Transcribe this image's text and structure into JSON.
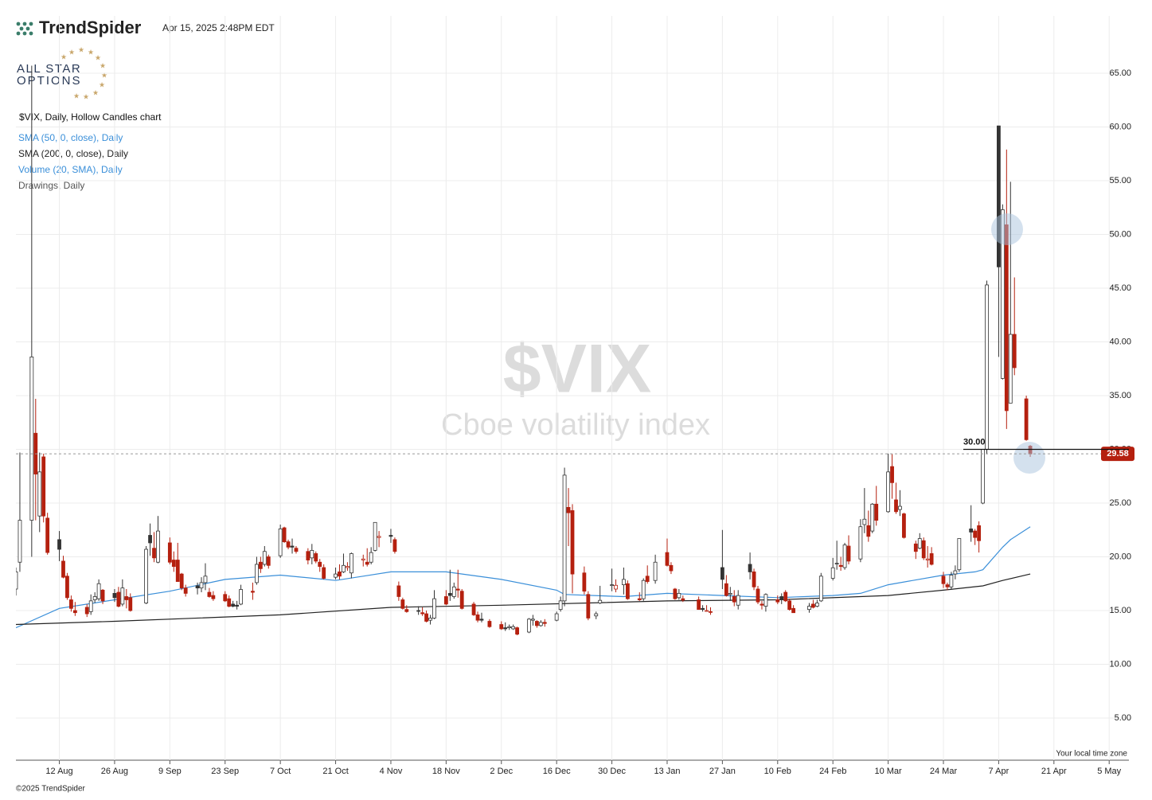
{
  "chart_data": {
    "type": "candlestick",
    "brand": "TrendSpider",
    "timestamp": "Apr 15, 2025 2:48PM EDT",
    "logo_text": [
      "ALL STAR",
      "OPTIONS"
    ],
    "subtitle": "$VIX, Daily, Hollow Candles chart",
    "watermark": "$VIX",
    "watermark_subtitle": "Cboe volatility index",
    "indicators": [
      "Volume (20, SMA), Daily",
      "Drawings, Daily"
    ],
    "timezone_note": "Your local time zone",
    "copyright": "©2025 TrendSpider",
    "up_color": "#333333",
    "down_color": "#b5200f",
    "grid": true,
    "xlim": [
      "1 Aug",
      "10 May"
    ],
    "xticks": [
      "12 Aug",
      "26 Aug",
      "9 Sep",
      "23 Sep",
      "7 Oct",
      "21 Oct",
      "4 Nov",
      "18 Nov",
      "2 Dec",
      "16 Dec",
      "30 Dec",
      "13 Jan",
      "27 Jan",
      "10 Feb",
      "24 Feb",
      "10 Mar",
      "24 Mar",
      "7 Apr",
      "21 Apr",
      "5 May"
    ],
    "ylim": [
      1,
      70
    ],
    "yticks": [
      {
        "value": 5,
        "label": "5.00"
      },
      {
        "value": 10,
        "label": "10.00"
      },
      {
        "value": 15,
        "label": "15.00"
      },
      {
        "value": 20,
        "label": "20.00"
      },
      {
        "value": 25,
        "label": "25.00"
      },
      {
        "value": 30,
        "label": "30.00"
      },
      {
        "value": 35,
        "label": "35.00"
      },
      {
        "value": 40,
        "label": "40.00"
      },
      {
        "value": 45,
        "label": "45.00"
      },
      {
        "value": 50,
        "label": "50.00"
      },
      {
        "value": 55,
        "label": "55.00"
      },
      {
        "value": 60,
        "label": "60.00"
      },
      {
        "value": 65,
        "label": "65.00"
      }
    ],
    "level": {
      "value": 30,
      "label": "30.00"
    },
    "price_label": "29.58",
    "x": [
      "1 Aug",
      "2 Aug",
      "5 Aug",
      "6 Aug",
      "7 Aug",
      "8 Aug",
      "9 Aug",
      "12 Aug",
      "13 Aug",
      "14 Aug",
      "15 Aug",
      "16 Aug",
      "19 Aug",
      "20 Aug",
      "21 Aug",
      "22 Aug",
      "23 Aug",
      "26 Aug",
      "27 Aug",
      "28 Aug",
      "29 Aug",
      "30 Aug",
      "3 Sep",
      "4 Sep",
      "5 Sep",
      "6 Sep",
      "9 Sep",
      "10 Sep",
      "11 Sep",
      "12 Sep",
      "13 Sep",
      "16 Sep",
      "17 Sep",
      "18 Sep",
      "19 Sep",
      "20 Sep",
      "23 Sep",
      "24 Sep",
      "25 Sep",
      "26 Sep",
      "27 Sep",
      "30 Sep",
      "1 Oct",
      "2 Oct",
      "3 Oct",
      "4 Oct",
      "7 Oct",
      "8 Oct",
      "9 Oct",
      "10 Oct",
      "11 Oct",
      "14 Oct",
      "15 Oct",
      "16 Oct",
      "17 Oct",
      "18 Oct",
      "21 Oct",
      "22 Oct",
      "23 Oct",
      "24 Oct",
      "25 Oct",
      "28 Oct",
      "29 Oct",
      "30 Oct",
      "31 Oct",
      "1 Nov",
      "4 Nov",
      "5 Nov",
      "6 Nov",
      "7 Nov",
      "8 Nov",
      "11 Nov",
      "12 Nov",
      "13 Nov",
      "14 Nov",
      "15 Nov",
      "18 Nov",
      "19 Nov",
      "20 Nov",
      "21 Nov",
      "22 Nov",
      "25 Nov",
      "26 Nov",
      "27 Nov",
      "29 Nov",
      "2 Dec",
      "3 Dec",
      "4 Dec",
      "5 Dec",
      "6 Dec",
      "9 Dec",
      "10 Dec",
      "11 Dec",
      "12 Dec",
      "13 Dec",
      "16 Dec",
      "17 Dec",
      "18 Dec",
      "19 Dec",
      "20 Dec",
      "23 Dec",
      "24 Dec",
      "26 Dec",
      "27 Dec",
      "30 Dec",
      "31 Dec",
      "2 Jan",
      "3 Jan",
      "6 Jan",
      "7 Jan",
      "8 Jan",
      "10 Jan",
      "13 Jan",
      "14 Jan",
      "15 Jan",
      "16 Jan",
      "17 Jan",
      "21 Jan",
      "22 Jan",
      "23 Jan",
      "24 Jan",
      "27 Jan",
      "28 Jan",
      "29 Jan",
      "30 Jan",
      "31 Jan",
      "3 Feb",
      "4 Feb",
      "5 Feb",
      "6 Feb",
      "7 Feb",
      "10 Feb",
      "11 Feb",
      "12 Feb",
      "13 Feb",
      "14 Feb",
      "18 Feb",
      "19 Feb",
      "20 Feb",
      "21 Feb",
      "24 Feb",
      "25 Feb",
      "26 Feb",
      "27 Feb",
      "28 Feb",
      "3 Mar",
      "4 Mar",
      "5 Mar",
      "6 Mar",
      "7 Mar",
      "10 Mar",
      "11 Mar",
      "12 Mar",
      "13 Mar",
      "14 Mar",
      "17 Mar",
      "18 Mar",
      "19 Mar",
      "20 Mar",
      "21 Mar",
      "24 Mar",
      "25 Mar",
      "26 Mar",
      "27 Mar",
      "28 Mar",
      "31 Mar",
      "1 Apr",
      "2 Apr",
      "3 Apr",
      "4 Apr",
      "7 Apr",
      "8 Apr",
      "9 Apr",
      "10 Apr",
      "11 Apr",
      "14 Apr",
      "15 Apr"
    ],
    "open": [
      17.0,
      19.5,
      23.4,
      31.5,
      23.8,
      29.3,
      23.6,
      21.6,
      19.6,
      18.2,
      16.0,
      15.0,
      15.3,
      14.9,
      16.0,
      16.1,
      16.9,
      16.6,
      16.7,
      15.6,
      16.3,
      16.2,
      15.7,
      22.0,
      20.8,
      19.5,
      21.3,
      19.7,
      19.7,
      18.4,
      17.1,
      17.3,
      17.1,
      17.6,
      16.7,
      16.4,
      16.5,
      16.1,
      15.6,
      15.5,
      15.6,
      16.8,
      17.6,
      19.5,
      19.3,
      20.0,
      20.1,
      22.7,
      21.4,
      21.0,
      20.8,
      20.5,
      19.9,
      20.3,
      19.5,
      19.0,
      18.1,
      18.6,
      18.6,
      19.0,
      18.5,
      19.7,
      19.5,
      19.5,
      20.6,
      21.8,
      22.0,
      21.6,
      17.3,
      16.0,
      15.1,
      15.0,
      14.8,
      14.7,
      14.1,
      14.3,
      16.3,
      16.6,
      16.3,
      17.0,
      16.8,
      15.6,
      14.6,
      14.2,
      14.0,
      13.7,
      13.4,
      13.4,
      13.3,
      13.4,
      13.0,
      14.1,
      14.0,
      13.6,
      13.9,
      14.1,
      15.1,
      15.9,
      24.6,
      24.3,
      18.5,
      16.5,
      14.5,
      15.7,
      17.4,
      17.0,
      17.4,
      17.5,
      16.1,
      16.1,
      18.2,
      17.8,
      20.4,
      19.2,
      17.0,
      16.2,
      16.1,
      16.0,
      15.2,
      15.0,
      14.9,
      19.0,
      17.5,
      16.5,
      16.3,
      15.5,
      19.3,
      18.6,
      17.0,
      15.6,
      15.4,
      16.0,
      16.3,
      16.7,
      15.9,
      15.2,
      15.1,
      15.6,
      15.4,
      15.9,
      18.0,
      19.4,
      19.2,
      19.0,
      21.0,
      19.8,
      23.0,
      22.9,
      22.4,
      24.9,
      24.2,
      28.4,
      25.3,
      24.4,
      24.0,
      21.2,
      20.8,
      21.5,
      19.7,
      20.3,
      18.2,
      17.4,
      17.2,
      18.4,
      18.8,
      22.6,
      22.4,
      22.9,
      25.0,
      30.0,
      60.1,
      36.6,
      50.9,
      34.3,
      40.7,
      34.7,
      30.3
    ],
    "high": [
      19.0,
      29.7,
      65.7,
      34.7,
      29.7,
      29.6,
      24.1,
      22.4,
      20.1,
      18.5,
      16.4,
      15.8,
      15.6,
      16.5,
      16.7,
      17.9,
      17.0,
      17.0,
      17.2,
      17.9,
      17.0,
      16.6,
      21.0,
      23.1,
      22.3,
      23.8,
      21.8,
      20.5,
      21.3,
      18.5,
      17.4,
      17.6,
      18.1,
      19.4,
      17.1,
      16.8,
      16.8,
      16.4,
      15.9,
      15.9,
      17.4,
      17.6,
      20.0,
      20.0,
      21.0,
      20.2,
      23.0,
      22.8,
      21.6,
      21.7,
      21.0,
      20.8,
      21.2,
      20.5,
      19.8,
      19.3,
      19.0,
      19.3,
      20.3,
      19.5,
      20.4,
      20.2,
      20.8,
      20.9,
      23.2,
      22.4,
      22.6,
      21.8,
      17.7,
      16.2,
      15.5,
      15.4,
      15.3,
      15.0,
      14.6,
      16.9,
      16.9,
      18.8,
      17.6,
      18.8,
      17.0,
      15.8,
      14.9,
      14.8,
      14.2,
      14.0,
      13.9,
      13.7,
      13.7,
      13.5,
      14.3,
      14.6,
      14.1,
      14.1,
      14.2,
      14.9,
      16.3,
      28.3,
      26.4,
      24.9,
      19.1,
      16.8,
      14.9,
      17.3,
      18.9,
      17.9,
      19.0,
      17.8,
      16.7,
      18.0,
      19.2,
      20.2,
      21.7,
      19.5,
      17.1,
      17.0,
      16.4,
      16.3,
      15.5,
      15.5,
      15.3,
      22.5,
      18.3,
      17.2,
      16.9,
      16.9,
      20.4,
      18.9,
      17.3,
      15.9,
      16.6,
      16.4,
      16.6,
      16.9,
      16.1,
      15.5,
      15.7,
      16.0,
      16.0,
      18.5,
      19.9,
      21.5,
      20.0,
      21.3,
      22.0,
      23.5,
      26.4,
      24.3,
      25.0,
      26.6,
      29.6,
      29.6,
      26.9,
      26.2,
      24.1,
      21.5,
      22.2,
      21.8,
      21.0,
      20.9,
      18.6,
      17.6,
      18.6,
      19.2,
      21.7,
      24.8,
      22.6,
      23.3,
      30.0,
      45.7,
      60.1,
      52.8,
      57.9,
      54.9,
      46.0,
      35.0,
      30.4
    ],
    "low": [
      16.4,
      18.6,
      20.0,
      23.4,
      22.3,
      23.2,
      20.2,
      19.6,
      18.0,
      16.0,
      14.9,
      14.5,
      14.4,
      14.6,
      15.7,
      15.9,
      15.6,
      15.8,
      15.3,
      15.4,
      15.2,
      14.9,
      15.6,
      20.1,
      19.5,
      19.4,
      19.3,
      18.6,
      17.7,
      16.9,
      16.3,
      16.5,
      16.7,
      16.9,
      16.2,
      15.9,
      15.8,
      15.3,
      15.3,
      15.1,
      15.5,
      16.0,
      17.4,
      18.5,
      19.1,
      18.9,
      19.9,
      21.3,
      20.7,
      20.3,
      20.3,
      19.3,
      19.3,
      19.4,
      18.6,
      17.9,
      17.9,
      17.9,
      18.5,
      18.7,
      18.0,
      19.1,
      19.1,
      19.3,
      20.5,
      20.9,
      21.3,
      20.3,
      15.9,
      15.1,
      14.8,
      14.6,
      14.5,
      13.9,
      13.7,
      14.2,
      15.5,
      15.9,
      16.1,
      16.2,
      15.1,
      14.5,
      13.9,
      13.9,
      13.4,
      13.2,
      13.1,
      13.2,
      13.2,
      12.7,
      12.9,
      13.6,
      13.4,
      13.5,
      13.5,
      14.0,
      14.9,
      15.4,
      21.0,
      16.6,
      16.5,
      14.1,
      14.2,
      15.6,
      16.8,
      16.7,
      16.5,
      16.0,
      15.9,
      15.9,
      17.5,
      17.5,
      19.1,
      18.4,
      16.0,
      16.0,
      15.8,
      15.1,
      14.9,
      14.9,
      14.6,
      17.0,
      16.3,
      15.9,
      15.4,
      15.1,
      17.9,
      16.9,
      15.6,
      15.1,
      14.9,
      15.6,
      15.6,
      15.8,
      15.0,
      14.8,
      14.8,
      15.2,
      15.3,
      15.8,
      17.8,
      18.8,
      18.7,
      18.8,
      19.3,
      19.5,
      22.2,
      21.4,
      22.2,
      22.9,
      24.1,
      25.4,
      24.0,
      23.8,
      21.7,
      19.8,
      20.7,
      19.7,
      19.0,
      19.2,
      17.1,
      16.9,
      17.0,
      17.9,
      18.6,
      21.4,
      21.1,
      20.4,
      24.9,
      29.6,
      38.6,
      36.5,
      31.9,
      34.3,
      36.9,
      30.8,
      29.3
    ],
    "close": [
      18.6,
      23.4,
      38.6,
      27.7,
      27.9,
      23.8,
      20.4,
      20.7,
      18.1,
      16.2,
      15.2,
      14.8,
      14.7,
      15.9,
      16.3,
      17.5,
      15.9,
      16.2,
      15.4,
      17.1,
      16.0,
      15.0,
      20.7,
      21.3,
      19.9,
      22.4,
      19.5,
      19.1,
      17.7,
      17.1,
      16.6,
      17.1,
      17.6,
      18.2,
      16.3,
      16.1,
      15.9,
      15.4,
      15.4,
      15.4,
      16.96,
      16.7,
      19.3,
      18.9,
      20.5,
      19.2,
      22.6,
      21.4,
      20.9,
      20.9,
      20.5,
      19.7,
      20.6,
      19.6,
      19.1,
      18.0,
      18.4,
      18.2,
      19.2,
      19.1,
      20.3,
      19.8,
      19.3,
      20.4,
      23.2,
      21.9,
      21.9,
      20.5,
      16.3,
      15.2,
      14.9,
      14.97,
      14.7,
      14.0,
      14.3,
      16.1,
      15.6,
      16.4,
      17.2,
      16.9,
      15.2,
      14.6,
      14.1,
      14.1,
      13.5,
      13.3,
      13.3,
      13.5,
      13.5,
      12.8,
      14.2,
      14.2,
      13.6,
      13.9,
      13.8,
      14.7,
      15.9,
      27.6,
      24.1,
      18.4,
      16.8,
      14.3,
      14.7,
      15.95,
      17.4,
      17.35,
      17.9,
      16.1,
      16.0,
      17.8,
      17.7,
      19.5,
      19.2,
      18.7,
      16.1,
      16.6,
      15.97,
      15.1,
      15.1,
      15.0,
      14.85,
      17.9,
      16.4,
      16.6,
      15.8,
      16.4,
      18.6,
      17.2,
      15.8,
      15.5,
      16.5,
      15.8,
      16.0,
      15.9,
      15.1,
      14.8,
      15.4,
      15.3,
      15.7,
      18.2,
      18.98,
      19.4,
      19.1,
      21.1,
      19.6,
      22.8,
      23.5,
      21.9,
      24.9,
      23.4,
      27.9,
      26.9,
      24.2,
      24.7,
      21.8,
      20.5,
      21.7,
      19.9,
      19.8,
      19.3,
      17.5,
      17.2,
      18.3,
      18.7,
      21.7,
      22.3,
      21.8,
      21.5,
      30.0,
      45.3,
      46.98,
      52.3,
      33.6,
      40.7,
      37.6,
      30.9,
      29.58
    ],
    "series": [
      {
        "name": "SMA (50, 0, close), Daily",
        "color": "#3a8fd9",
        "x": [
          "1 Aug",
          "12 Aug",
          "26 Aug",
          "9 Sep",
          "23 Sep",
          "7 Oct",
          "21 Oct",
          "28 Oct",
          "4 Nov",
          "18 Nov",
          "2 Dec",
          "16 Dec",
          "18 Dec",
          "2 Jan",
          "13 Jan",
          "27 Jan",
          "10 Feb",
          "24 Feb",
          "3 Mar",
          "10 Mar",
          "24 Mar",
          "1 Apr",
          "3 Apr",
          "8 Apr",
          "10 Apr",
          "15 Apr"
        ],
        "values": [
          13.4,
          15.2,
          16.0,
          16.8,
          17.9,
          18.3,
          17.8,
          18.2,
          18.6,
          18.6,
          17.9,
          16.9,
          16.5,
          16.3,
          16.6,
          16.4,
          16.2,
          16.4,
          16.6,
          17.4,
          18.3,
          18.6,
          18.8,
          20.9,
          21.6,
          22.8
        ]
      },
      {
        "name": "SMA (200, 0, close), Daily",
        "color": "#222222",
        "x": [
          "1 Aug",
          "26 Aug",
          "7 Oct",
          "4 Nov",
          "2 Dec",
          "13 Jan",
          "10 Feb",
          "10 Mar",
          "24 Mar",
          "3 Apr",
          "8 Apr",
          "15 Apr"
        ],
        "values": [
          13.7,
          14.0,
          14.6,
          15.3,
          15.5,
          15.9,
          16.0,
          16.4,
          16.9,
          17.3,
          17.8,
          18.4
        ]
      }
    ]
  }
}
